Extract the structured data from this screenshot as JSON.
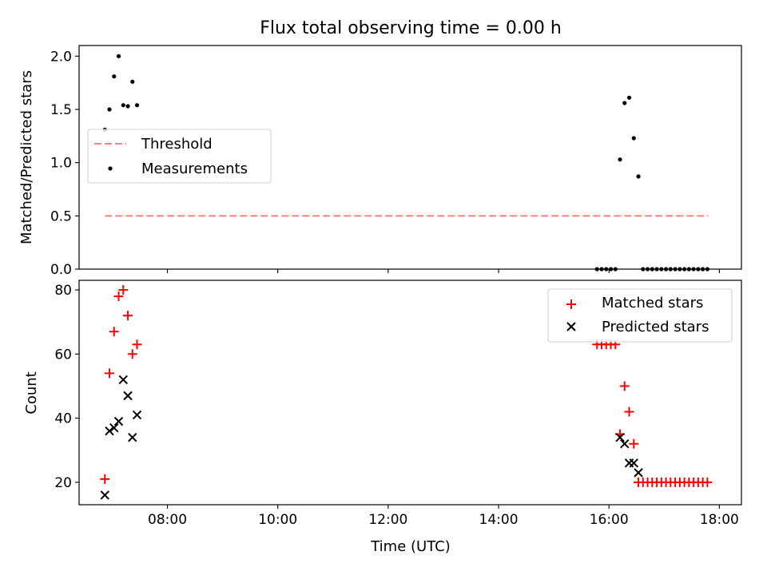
{
  "figure": {
    "title": "Flux total observing time = 0.00 h",
    "xlabel": "Time (UTC)"
  },
  "colors": {
    "threshold": "#ff7f7f",
    "measurements": "#000000",
    "matched": "#ff0000",
    "predicted": "#000000"
  },
  "chart_data": [
    {
      "type": "scatter",
      "ylabel": "Matched/Predicted stars",
      "xlim": [
        "06:24",
        "18:24"
      ],
      "ylim": [
        0,
        2.1
      ],
      "xticks": [
        "08:00",
        "10:00",
        "12:00",
        "14:00",
        "16:00",
        "18:00"
      ],
      "yticks": [
        "0.0",
        "0.5",
        "1.0",
        "1.5",
        "2.0"
      ],
      "legend": {
        "position": "center-left",
        "entries": [
          "Threshold",
          "Measurements"
        ]
      },
      "threshold": {
        "name": "Threshold",
        "y": 0.5,
        "x_range": [
          "06:52",
          "17:48"
        ]
      },
      "series": [
        {
          "name": "Measurements",
          "marker": "dot",
          "x": [
            "06:52",
            "06:57",
            "07:02",
            "07:07",
            "07:12",
            "07:17",
            "07:22",
            "07:27",
            "15:47",
            "15:52",
            "15:57",
            "16:02",
            "16:07",
            "16:12",
            "16:17",
            "16:22",
            "16:27",
            "16:32",
            "16:37",
            "16:42",
            "16:47",
            "16:52",
            "16:57",
            "17:02",
            "17:07",
            "17:12",
            "17:17",
            "17:22",
            "17:27",
            "17:32",
            "17:37",
            "17:42",
            "17:47"
          ],
          "y": [
            1.31,
            1.5,
            1.81,
            2.0,
            1.54,
            1.53,
            1.76,
            1.54,
            0.0,
            0.0,
            0.0,
            0.0,
            0.0,
            1.03,
            1.56,
            1.61,
            1.23,
            0.87,
            0.0,
            0.0,
            0.0,
            0.0,
            0.0,
            0.0,
            0.0,
            0.0,
            0.0,
            0.0,
            0.0,
            0.0,
            0.0,
            0.0,
            0.0
          ]
        }
      ]
    },
    {
      "type": "scatter",
      "ylabel": "Count",
      "xlim": [
        "06:24",
        "18:24"
      ],
      "ylim": [
        13,
        83
      ],
      "xticks": [
        "08:00",
        "10:00",
        "12:00",
        "14:00",
        "16:00",
        "18:00"
      ],
      "yticks": [
        "20",
        "40",
        "60",
        "80"
      ],
      "legend": {
        "position": "top-right",
        "entries": [
          "Matched stars",
          "Predicted stars"
        ]
      },
      "series": [
        {
          "name": "Matched stars",
          "marker": "plus",
          "x": [
            "06:52",
            "06:57",
            "07:02",
            "07:07",
            "07:12",
            "07:17",
            "07:22",
            "07:27",
            "15:47",
            "15:52",
            "15:57",
            "16:02",
            "16:07",
            "16:12",
            "16:17",
            "16:22",
            "16:27",
            "16:32",
            "16:37",
            "16:42",
            "16:47",
            "16:52",
            "16:57",
            "17:02",
            "17:07",
            "17:12",
            "17:17",
            "17:22",
            "17:27",
            "17:32",
            "17:37",
            "17:42",
            "17:47"
          ],
          "y": [
            21,
            54,
            67,
            78,
            80,
            72,
            60,
            63,
            63,
            63,
            63,
            63,
            63,
            35,
            50,
            42,
            32,
            20,
            20,
            20,
            20,
            20,
            20,
            20,
            20,
            20,
            20,
            20,
            20,
            20,
            20,
            20,
            20
          ]
        },
        {
          "name": "Predicted stars",
          "marker": "x",
          "x": [
            "06:52",
            "06:57",
            "07:02",
            "07:07",
            "07:12",
            "07:17",
            "07:22",
            "07:27",
            "16:12",
            "16:17",
            "16:22",
            "16:27",
            "16:32"
          ],
          "y": [
            16,
            36,
            37,
            39,
            52,
            47,
            34,
            41,
            34,
            32,
            26,
            26,
            23
          ]
        }
      ]
    }
  ]
}
